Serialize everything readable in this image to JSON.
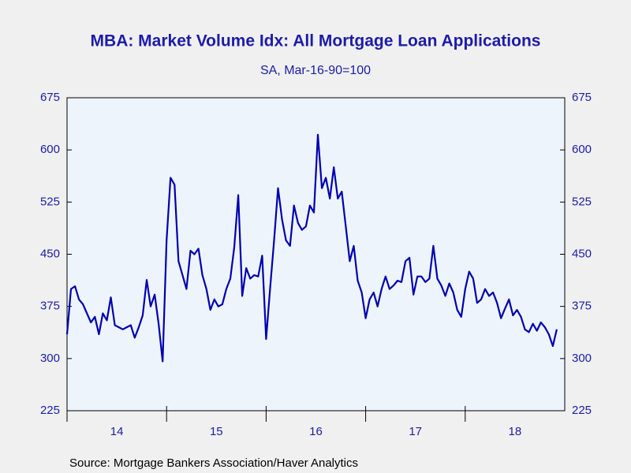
{
  "chart_data": {
    "type": "line",
    "title": "MBA: Market Volume Idx: All Mortgage Loan Applications",
    "subtitle": "SA, Mar-16-90=100",
    "source": "Source:  Mortgage Bankers Association/Haver Analytics",
    "x": [
      2014.0,
      2014.04,
      2014.08,
      2014.12,
      2014.16,
      2014.2,
      2014.24,
      2014.28,
      2014.32,
      2014.36,
      2014.4,
      2014.44,
      2014.48,
      2014.52,
      2014.56,
      2014.6,
      2014.64,
      2014.68,
      2014.72,
      2014.76,
      2014.8,
      2014.84,
      2014.88,
      2014.92,
      2014.96,
      2015.0,
      2015.04,
      2015.08,
      2015.12,
      2015.16,
      2015.2,
      2015.24,
      2015.28,
      2015.32,
      2015.36,
      2015.4,
      2015.44,
      2015.48,
      2015.52,
      2015.56,
      2015.6,
      2015.64,
      2015.68,
      2015.72,
      2015.76,
      2015.8,
      2015.84,
      2015.88,
      2015.92,
      2015.96,
      2016.0,
      2016.04,
      2016.08,
      2016.12,
      2016.16,
      2016.2,
      2016.24,
      2016.28,
      2016.32,
      2016.36,
      2016.4,
      2016.44,
      2016.48,
      2016.52,
      2016.56,
      2016.6,
      2016.64,
      2016.68,
      2016.72,
      2016.76,
      2016.8,
      2016.84,
      2016.88,
      2016.92,
      2016.96,
      2017.0,
      2017.04,
      2017.08,
      2017.12,
      2017.16,
      2017.2,
      2017.24,
      2017.28,
      2017.32,
      2017.36,
      2017.4,
      2017.44,
      2017.48,
      2017.52,
      2017.56,
      2017.6,
      2017.64,
      2017.68,
      2017.72,
      2017.76,
      2017.8,
      2017.84,
      2017.88,
      2017.92,
      2017.96,
      2018.0,
      2018.04,
      2018.08,
      2018.12,
      2018.16,
      2018.2,
      2018.24,
      2018.28,
      2018.32,
      2018.36,
      2018.4,
      2018.44,
      2018.48,
      2018.52,
      2018.56,
      2018.6,
      2018.64,
      2018.68,
      2018.72,
      2018.76,
      2018.8,
      2018.84,
      2018.88,
      2018.92
    ],
    "series": [
      {
        "name": "Market Volume Idx",
        "color": "#0000b0",
        "values": [
          335,
          400,
          404,
          385,
          378,
          365,
          352,
          360,
          335,
          365,
          355,
          388,
          348,
          345,
          342,
          345,
          348,
          330,
          345,
          362,
          413,
          375,
          392,
          350,
          296,
          470,
          560,
          550,
          440,
          420,
          400,
          455,
          450,
          458,
          420,
          400,
          370,
          385,
          375,
          378,
          400,
          415,
          460,
          535,
          390,
          430,
          415,
          420,
          418,
          448,
          328,
          400,
          470,
          545,
          500,
          470,
          462,
          520,
          495,
          485,
          490,
          520,
          510,
          622,
          545,
          560,
          530,
          575,
          530,
          540,
          490,
          440,
          462,
          412,
          395,
          358,
          385,
          395,
          375,
          400,
          418,
          400,
          405,
          412,
          410,
          440,
          445,
          392,
          418,
          418,
          410,
          415,
          462,
          415,
          405,
          390,
          408,
          395,
          370,
          360,
          400,
          425,
          415,
          380,
          385,
          400,
          390,
          395,
          380,
          358,
          372,
          385,
          362,
          370,
          360,
          342,
          338,
          350,
          340,
          352,
          345,
          335,
          318,
          342
        ]
      }
    ],
    "xlim": [
      2014,
      2019
    ],
    "xticks": [
      {
        "value": 2014,
        "label": "14"
      },
      {
        "value": 2015,
        "label": "15"
      },
      {
        "value": 2016,
        "label": "16"
      },
      {
        "value": 2017,
        "label": "17"
      },
      {
        "value": 2018,
        "label": "18"
      }
    ],
    "ylim": [
      225,
      675
    ],
    "yticks": [
      225,
      300,
      375,
      450,
      525,
      600,
      675
    ],
    "y2lim": [
      225,
      675
    ],
    "y2ticks": [
      225,
      300,
      375,
      450,
      525,
      600,
      675
    ]
  }
}
